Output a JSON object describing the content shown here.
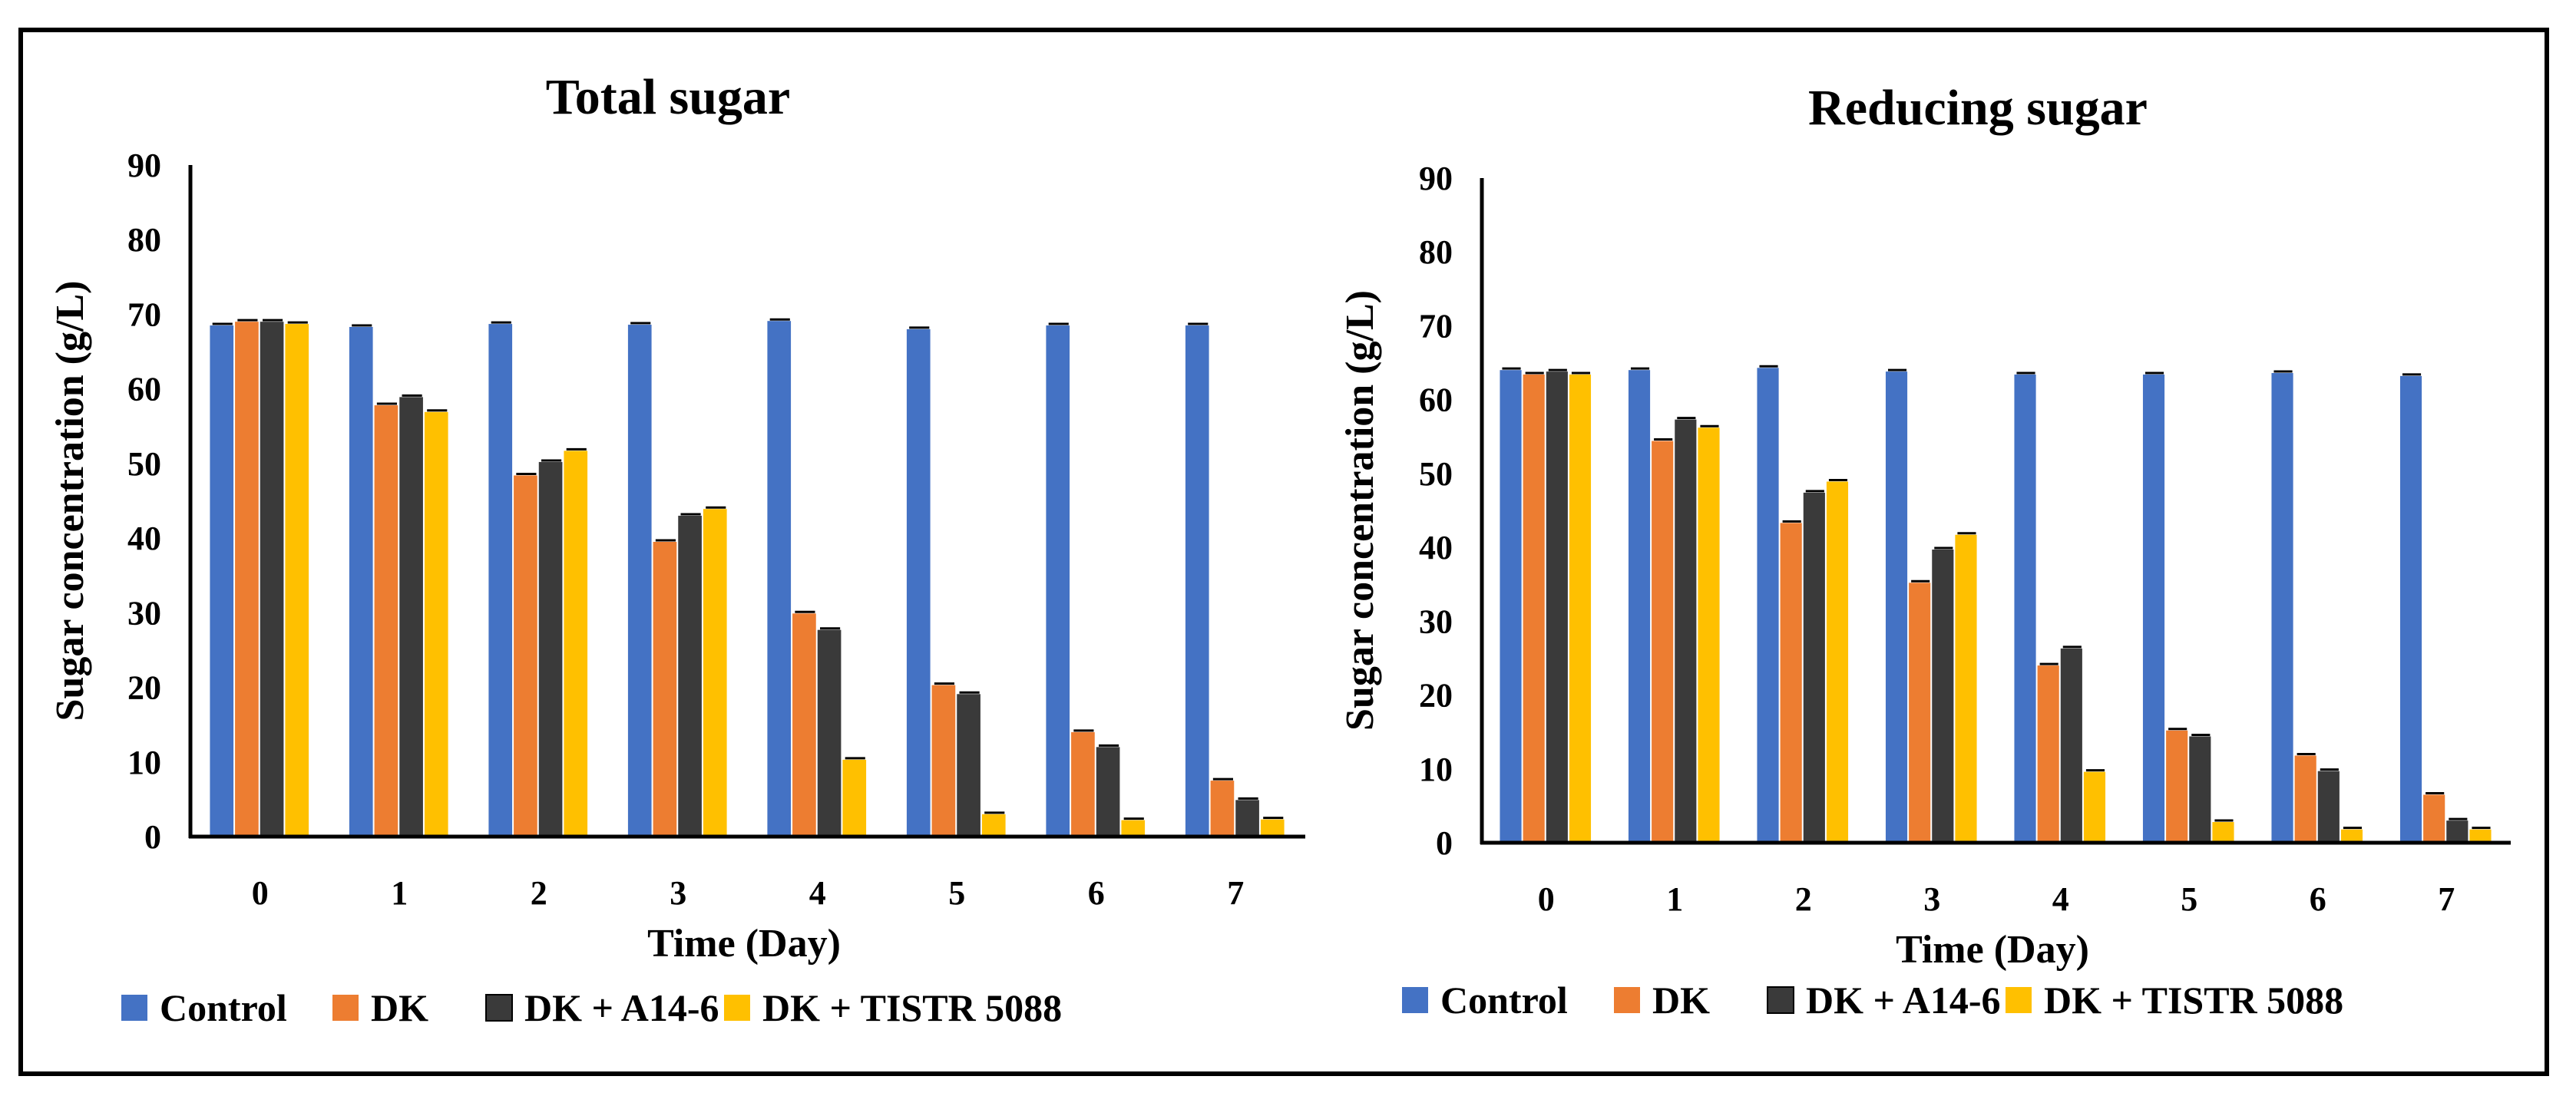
{
  "chart_data": [
    {
      "type": "bar",
      "title": "Total sugar",
      "xlabel": "Time (Day)",
      "ylabel": "Sugar concentration (g/L)",
      "ylim": [
        0,
        90
      ],
      "yticks": [
        0,
        10,
        20,
        30,
        40,
        50,
        60,
        70,
        80,
        90
      ],
      "categories": [
        "0",
        "1",
        "2",
        "3",
        "4",
        "5",
        "6",
        "7"
      ],
      "series": [
        {
          "name": "Control",
          "values": [
            68.5,
            68.3,
            68.7,
            68.6,
            69.1,
            68.0,
            68.5,
            68.5
          ]
        },
        {
          "name": "DK",
          "values": [
            69.0,
            57.8,
            48.4,
            39.5,
            29.9,
            20.3,
            14.0,
            7.5
          ]
        },
        {
          "name": "DK + A14-6",
          "values": [
            69.0,
            58.9,
            50.2,
            43.0,
            27.7,
            19.1,
            12.0,
            4.9
          ]
        },
        {
          "name": "DK + TISTR 5088",
          "values": [
            68.7,
            56.9,
            51.7,
            43.9,
            10.3,
            3.0,
            2.2,
            2.3
          ]
        }
      ],
      "legend": "bottom"
    },
    {
      "type": "bar",
      "title": "Reducing sugar",
      "xlabel": "Time (Day)",
      "ylabel": "Sugar concentration (g/L)",
      "ylim": [
        0,
        90
      ],
      "yticks": [
        0,
        10,
        20,
        30,
        40,
        50,
        60,
        70,
        80,
        90
      ],
      "categories": [
        "0",
        "1",
        "2",
        "3",
        "4",
        "5",
        "6",
        "7"
      ],
      "series": [
        {
          "name": "Control",
          "values": [
            64.0,
            64.0,
            64.3,
            63.8,
            63.4,
            63.4,
            63.6,
            63.2
          ]
        },
        {
          "name": "DK",
          "values": [
            63.4,
            54.4,
            43.3,
            35.2,
            24.0,
            15.2,
            11.8,
            6.5
          ]
        },
        {
          "name": "DK + A14-6",
          "values": [
            63.8,
            57.3,
            47.4,
            39.7,
            26.3,
            14.4,
            9.7,
            3.0
          ]
        },
        {
          "name": "DK + TISTR 5088",
          "values": [
            63.4,
            56.2,
            48.9,
            41.7,
            9.6,
            2.8,
            1.8,
            1.8
          ]
        }
      ],
      "legend": "bottom"
    }
  ],
  "colors": {
    "Control": "#4472C4",
    "DK": "#ED7D31",
    "DK + A14-6": "#3A3A3A",
    "DK + TISTR 5088": "#FFC000"
  }
}
